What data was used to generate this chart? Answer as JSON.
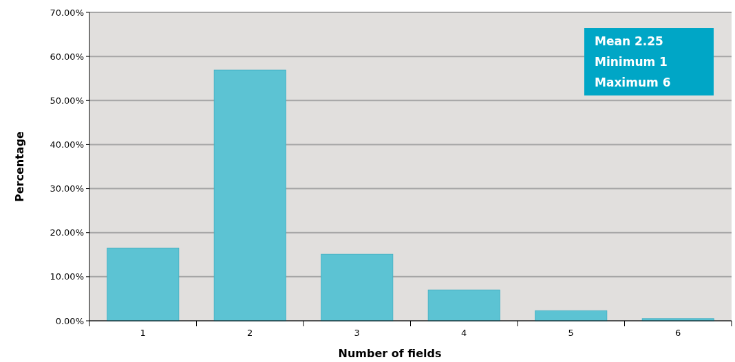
{
  "chart_data": {
    "type": "bar",
    "xlabel": "Number of fields",
    "ylabel": "Percentage",
    "categories": [
      "1",
      "2",
      "3",
      "4",
      "5",
      "6"
    ],
    "values": [
      16.5,
      56.9,
      15.1,
      7.0,
      2.3,
      0.5
    ],
    "color": "#5cc3d3",
    "ylim": [
      0,
      70
    ],
    "yticks": [
      {
        "value": 0,
        "label": "0.00%"
      },
      {
        "value": 10,
        "label": "10.00%"
      },
      {
        "value": 20,
        "label": "20.00%"
      },
      {
        "value": 30,
        "label": "30.00%"
      },
      {
        "value": 40,
        "label": "40.00%"
      },
      {
        "value": 50,
        "label": "50.00%"
      },
      {
        "value": 60,
        "label": "60.00%"
      },
      {
        "value": 70,
        "label": "70.00%"
      }
    ],
    "grid": "y",
    "annotations": [
      "Mean 2.25",
      "Minimum 1",
      "Maximum 6"
    ]
  }
}
